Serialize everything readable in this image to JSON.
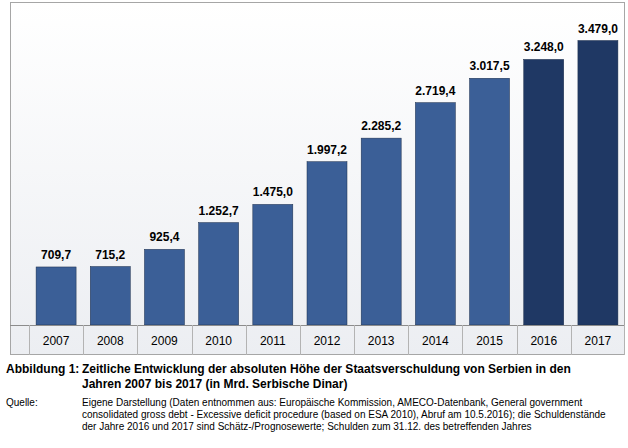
{
  "chart_data": {
    "type": "bar",
    "figure_label": "Abbildung 1:",
    "title": "Zeitliche Entwicklung der absoluten Höhe der Staatsverschuldung von Serbien in den Jahren 2007 bis 2017 (in Mrd. Serbische Dinar)",
    "source_label": "Quelle:",
    "source": "Eigene Darstellung (Daten entnommen aus: Europäische Kommission, AMECO-Datenbank, General government consolidated gross debt - Excessive deficit procedure (based on ESA 2010), Abruf am 10.5.2016); die Schuldenstände der Jahre 2016 und 2017 sind Schätz-/Prognosewerte; Schulden zum 31.12. des betreffenden Jahres",
    "categories": [
      "2007",
      "2008",
      "2009",
      "2010",
      "2011",
      "2012",
      "2013",
      "2014",
      "2015",
      "2016",
      "2017"
    ],
    "values": [
      709.7,
      715.2,
      925.4,
      1252.7,
      1475.0,
      1997.2,
      2285.2,
      2719.4,
      3017.5,
      3248.0,
      3479.0
    ],
    "value_labels": [
      "709,7",
      "715,2",
      "925,4",
      "1.252,7",
      "1.475,0",
      "1.997,2",
      "2.285,2",
      "2.719,4",
      "3.017,5",
      "3.248,0",
      "3.479,0"
    ],
    "colors": [
      "#3b5f97",
      "#3b5f97",
      "#3b5f97",
      "#3b5f97",
      "#3b5f97",
      "#3b5f97",
      "#3b5f97",
      "#3b5f97",
      "#3b5f97",
      "#1f3864",
      "#1f3864"
    ],
    "ylim": [
      0,
      3950
    ],
    "data_labels": true,
    "tick_labels": "x",
    "grid": false
  }
}
